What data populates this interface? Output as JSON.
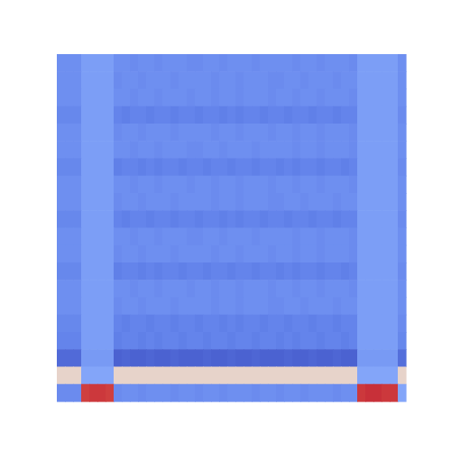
{
  "chart_data": {
    "type": "heatmap",
    "tick_labels": false,
    "zlim": [
      0,
      1
    ],
    "cells": [
      [
        0.16,
        0.16,
        0.16,
        0.2,
        0.2,
        0.2,
        0.2,
        0.16,
        0.16,
        0.15,
        0.16,
        0.16,
        0.15,
        0.16,
        0.16,
        0.16,
        0.15,
        0.15,
        0.16,
        0.16,
        0.15,
        0.16,
        0.16,
        0.16,
        0.15,
        0.16,
        0.16,
        0.16,
        0.16,
        0.15,
        0.16,
        0.16,
        0.15,
        0.16,
        0.16,
        0.16,
        0.15,
        0.2,
        0.2,
        0.2,
        0.2,
        0.2,
        0.16
      ],
      [
        0.16,
        0.16,
        0.16,
        0.2,
        0.2,
        0.2,
        0.2,
        0.15,
        0.16,
        0.16,
        0.15,
        0.16,
        0.16,
        0.16,
        0.15,
        0.16,
        0.16,
        0.16,
        0.16,
        0.15,
        0.16,
        0.16,
        0.15,
        0.16,
        0.16,
        0.16,
        0.15,
        0.15,
        0.16,
        0.16,
        0.15,
        0.16,
        0.16,
        0.16,
        0.15,
        0.16,
        0.16,
        0.2,
        0.2,
        0.2,
        0.2,
        0.2,
        0.16
      ],
      [
        0.16,
        0.16,
        0.16,
        0.2,
        0.2,
        0.2,
        0.2,
        0.16,
        0.16,
        0.15,
        0.16,
        0.16,
        0.15,
        0.16,
        0.16,
        0.16,
        0.15,
        0.16,
        0.16,
        0.15,
        0.16,
        0.16,
        0.15,
        0.16,
        0.16,
        0.16,
        0.15,
        0.16,
        0.16,
        0.15,
        0.16,
        0.16,
        0.15,
        0.16,
        0.16,
        0.16,
        0.15,
        0.2,
        0.2,
        0.2,
        0.2,
        0.2,
        0.16
      ],
      [
        0.14,
        0.14,
        0.14,
        0.2,
        0.2,
        0.2,
        0.2,
        0.13,
        0.12,
        0.13,
        0.13,
        0.12,
        0.13,
        0.13,
        0.12,
        0.13,
        0.13,
        0.12,
        0.13,
        0.13,
        0.12,
        0.13,
        0.12,
        0.13,
        0.13,
        0.12,
        0.13,
        0.13,
        0.12,
        0.13,
        0.13,
        0.12,
        0.13,
        0.13,
        0.12,
        0.13,
        0.13,
        0.2,
        0.2,
        0.2,
        0.2,
        0.2,
        0.15
      ],
      [
        0.16,
        0.16,
        0.16,
        0.2,
        0.2,
        0.2,
        0.2,
        0.15,
        0.16,
        0.16,
        0.15,
        0.16,
        0.16,
        0.16,
        0.15,
        0.16,
        0.16,
        0.16,
        0.16,
        0.15,
        0.16,
        0.16,
        0.15,
        0.16,
        0.16,
        0.16,
        0.15,
        0.16,
        0.16,
        0.15,
        0.16,
        0.16,
        0.15,
        0.16,
        0.16,
        0.16,
        0.15,
        0.2,
        0.2,
        0.2,
        0.2,
        0.2,
        0.16
      ],
      [
        0.16,
        0.16,
        0.16,
        0.2,
        0.2,
        0.2,
        0.2,
        0.16,
        0.16,
        0.15,
        0.16,
        0.16,
        0.15,
        0.16,
        0.16,
        0.16,
        0.15,
        0.15,
        0.16,
        0.16,
        0.15,
        0.16,
        0.16,
        0.16,
        0.15,
        0.16,
        0.16,
        0.16,
        0.16,
        0.15,
        0.16,
        0.16,
        0.15,
        0.16,
        0.16,
        0.16,
        0.15,
        0.2,
        0.2,
        0.2,
        0.2,
        0.2,
        0.16
      ],
      [
        0.14,
        0.14,
        0.14,
        0.2,
        0.2,
        0.2,
        0.2,
        0.12,
        0.13,
        0.13,
        0.12,
        0.13,
        0.12,
        0.13,
        0.13,
        0.12,
        0.13,
        0.13,
        0.12,
        0.13,
        0.13,
        0.12,
        0.13,
        0.13,
        0.12,
        0.13,
        0.13,
        0.12,
        0.13,
        0.12,
        0.13,
        0.13,
        0.12,
        0.13,
        0.13,
        0.12,
        0.13,
        0.2,
        0.2,
        0.2,
        0.2,
        0.2,
        0.15
      ],
      [
        0.16,
        0.16,
        0.16,
        0.2,
        0.2,
        0.2,
        0.2,
        0.16,
        0.16,
        0.15,
        0.16,
        0.16,
        0.15,
        0.16,
        0.16,
        0.16,
        0.15,
        0.16,
        0.16,
        0.15,
        0.16,
        0.16,
        0.15,
        0.16,
        0.16,
        0.16,
        0.15,
        0.16,
        0.16,
        0.15,
        0.16,
        0.16,
        0.15,
        0.16,
        0.16,
        0.16,
        0.15,
        0.2,
        0.2,
        0.2,
        0.2,
        0.2,
        0.16
      ],
      [
        0.16,
        0.16,
        0.16,
        0.2,
        0.2,
        0.2,
        0.2,
        0.15,
        0.16,
        0.16,
        0.15,
        0.16,
        0.16,
        0.16,
        0.15,
        0.16,
        0.16,
        0.16,
        0.16,
        0.15,
        0.16,
        0.16,
        0.15,
        0.16,
        0.16,
        0.16,
        0.15,
        0.15,
        0.16,
        0.16,
        0.15,
        0.16,
        0.16,
        0.16,
        0.15,
        0.16,
        0.16,
        0.2,
        0.2,
        0.2,
        0.2,
        0.2,
        0.16
      ],
      [
        0.14,
        0.14,
        0.14,
        0.2,
        0.2,
        0.2,
        0.2,
        0.13,
        0.12,
        0.13,
        0.13,
        0.12,
        0.13,
        0.13,
        0.12,
        0.13,
        0.13,
        0.12,
        0.13,
        0.13,
        0.12,
        0.13,
        0.12,
        0.13,
        0.13,
        0.12,
        0.13,
        0.13,
        0.12,
        0.13,
        0.13,
        0.12,
        0.13,
        0.13,
        0.12,
        0.13,
        0.13,
        0.2,
        0.2,
        0.2,
        0.2,
        0.2,
        0.15
      ],
      [
        0.16,
        0.16,
        0.16,
        0.2,
        0.2,
        0.2,
        0.2,
        0.16,
        0.16,
        0.15,
        0.16,
        0.16,
        0.15,
        0.16,
        0.16,
        0.16,
        0.15,
        0.15,
        0.16,
        0.16,
        0.15,
        0.16,
        0.16,
        0.16,
        0.15,
        0.16,
        0.16,
        0.16,
        0.16,
        0.15,
        0.16,
        0.16,
        0.15,
        0.16,
        0.16,
        0.16,
        0.15,
        0.2,
        0.2,
        0.2,
        0.2,
        0.2,
        0.16
      ],
      [
        0.16,
        0.16,
        0.16,
        0.2,
        0.2,
        0.2,
        0.2,
        0.15,
        0.16,
        0.16,
        0.15,
        0.16,
        0.16,
        0.16,
        0.15,
        0.16,
        0.16,
        0.16,
        0.16,
        0.15,
        0.16,
        0.16,
        0.15,
        0.16,
        0.16,
        0.16,
        0.15,
        0.16,
        0.16,
        0.15,
        0.16,
        0.16,
        0.15,
        0.16,
        0.16,
        0.16,
        0.15,
        0.2,
        0.2,
        0.2,
        0.2,
        0.2,
        0.16
      ],
      [
        0.14,
        0.14,
        0.14,
        0.2,
        0.2,
        0.2,
        0.2,
        0.12,
        0.13,
        0.13,
        0.12,
        0.13,
        0.12,
        0.13,
        0.13,
        0.12,
        0.13,
        0.13,
        0.12,
        0.13,
        0.13,
        0.12,
        0.13,
        0.13,
        0.12,
        0.13,
        0.13,
        0.12,
        0.13,
        0.12,
        0.13,
        0.13,
        0.12,
        0.13,
        0.13,
        0.12,
        0.13,
        0.2,
        0.2,
        0.2,
        0.2,
        0.2,
        0.15
      ],
      [
        0.16,
        0.16,
        0.16,
        0.2,
        0.2,
        0.2,
        0.2,
        0.16,
        0.16,
        0.15,
        0.16,
        0.16,
        0.15,
        0.16,
        0.16,
        0.16,
        0.15,
        0.16,
        0.16,
        0.15,
        0.16,
        0.16,
        0.15,
        0.16,
        0.16,
        0.16,
        0.15,
        0.16,
        0.16,
        0.15,
        0.16,
        0.16,
        0.15,
        0.16,
        0.16,
        0.16,
        0.15,
        0.2,
        0.2,
        0.2,
        0.2,
        0.2,
        0.16
      ],
      [
        0.16,
        0.16,
        0.16,
        0.2,
        0.2,
        0.2,
        0.2,
        0.15,
        0.16,
        0.16,
        0.15,
        0.16,
        0.16,
        0.16,
        0.15,
        0.16,
        0.16,
        0.16,
        0.16,
        0.15,
        0.16,
        0.16,
        0.15,
        0.16,
        0.16,
        0.16,
        0.15,
        0.15,
        0.16,
        0.16,
        0.15,
        0.16,
        0.16,
        0.16,
        0.15,
        0.16,
        0.16,
        0.2,
        0.2,
        0.2,
        0.2,
        0.2,
        0.16
      ],
      [
        0.14,
        0.14,
        0.14,
        0.2,
        0.2,
        0.2,
        0.2,
        0.13,
        0.12,
        0.13,
        0.13,
        0.12,
        0.13,
        0.13,
        0.12,
        0.13,
        0.13,
        0.12,
        0.13,
        0.13,
        0.12,
        0.13,
        0.12,
        0.13,
        0.13,
        0.12,
        0.13,
        0.13,
        0.12,
        0.13,
        0.13,
        0.12,
        0.13,
        0.13,
        0.12,
        0.13,
        0.13,
        0.2,
        0.2,
        0.2,
        0.2,
        0.2,
        0.15
      ],
      [
        0.13,
        0.13,
        0.13,
        0.2,
        0.2,
        0.2,
        0.2,
        0.12,
        0.13,
        0.13,
        0.12,
        0.13,
        0.12,
        0.13,
        0.13,
        0.12,
        0.13,
        0.13,
        0.12,
        0.13,
        0.13,
        0.12,
        0.13,
        0.13,
        0.12,
        0.13,
        0.13,
        0.12,
        0.13,
        0.12,
        0.13,
        0.13,
        0.12,
        0.13,
        0.13,
        0.12,
        0.13,
        0.2,
        0.2,
        0.2,
        0.2,
        0.2,
        0.14
      ],
      [
        0.07,
        0.07,
        0.07,
        0.19,
        0.19,
        0.19,
        0.19,
        0.05,
        0.06,
        0.05,
        0.05,
        0.06,
        0.05,
        0.05,
        0.06,
        0.05,
        0.05,
        0.05,
        0.06,
        0.05,
        0.05,
        0.06,
        0.05,
        0.05,
        0.06,
        0.05,
        0.05,
        0.05,
        0.06,
        0.05,
        0.05,
        0.06,
        0.05,
        0.05,
        0.06,
        0.05,
        0.05,
        0.19,
        0.19,
        0.19,
        0.19,
        0.19,
        0.08
      ],
      [
        0.55,
        0.55,
        0.55,
        0.22,
        0.22,
        0.22,
        0.22,
        0.55,
        0.55,
        0.55,
        0.55,
        0.55,
        0.55,
        0.55,
        0.55,
        0.55,
        0.55,
        0.55,
        0.55,
        0.55,
        0.55,
        0.55,
        0.55,
        0.55,
        0.55,
        0.55,
        0.55,
        0.55,
        0.55,
        0.55,
        0.55,
        0.55,
        0.55,
        0.55,
        0.55,
        0.55,
        0.55,
        0.22,
        0.22,
        0.22,
        0.22,
        0.22,
        0.55
      ],
      [
        0.15,
        0.15,
        0.15,
        0.92,
        0.93,
        0.93,
        0.92,
        0.15,
        0.16,
        0.16,
        0.15,
        0.16,
        0.16,
        0.16,
        0.15,
        0.16,
        0.16,
        0.15,
        0.16,
        0.16,
        0.15,
        0.16,
        0.16,
        0.16,
        0.15,
        0.16,
        0.16,
        0.15,
        0.16,
        0.16,
        0.15,
        0.16,
        0.16,
        0.16,
        0.15,
        0.16,
        0.16,
        0.93,
        0.94,
        0.94,
        0.93,
        0.93,
        0.22
      ]
    ]
  }
}
